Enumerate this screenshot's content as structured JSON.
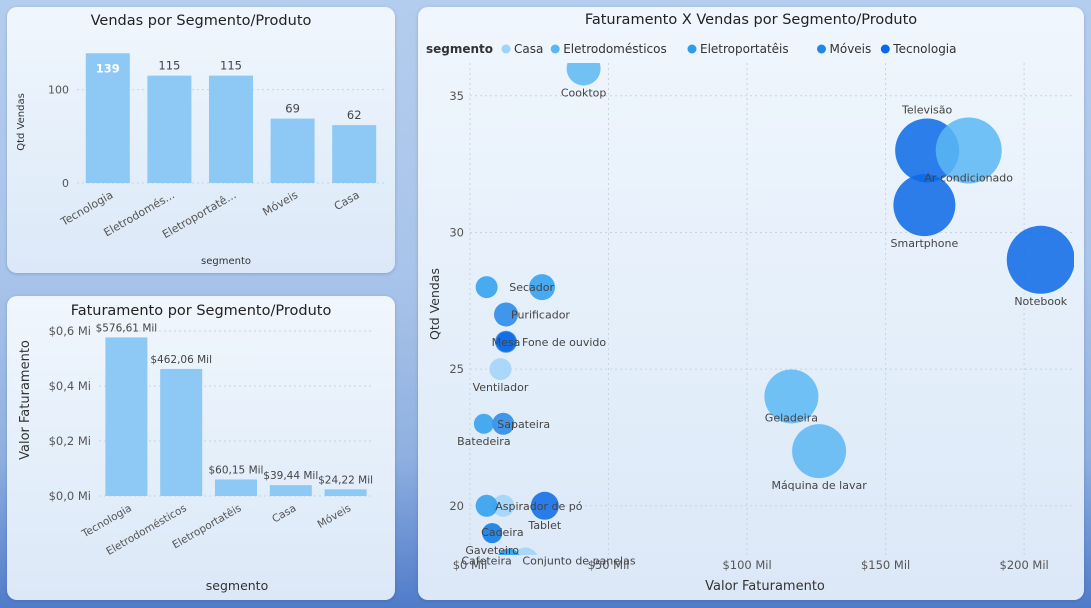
{
  "colors": {
    "bar": "#8ec8f5",
    "casa": "#9fd4f8",
    "eletrodomesticos": "#5bb7f3",
    "eletroportateis": "#2b9ded",
    "moveis": "#2386e8",
    "tecnologia": "#0b68e6"
  },
  "chart_data": [
    {
      "type": "bar",
      "title": "Vendas por Segmento/Produto",
      "xlabel": "segmento",
      "ylabel": "Qtd Vendas",
      "categories": [
        "Tecnologia",
        "Eletrodomés...",
        "Eletroportatê...",
        "Móveis",
        "Casa"
      ],
      "values": [
        139,
        115,
        115,
        69,
        62
      ],
      "data_labels": [
        "139",
        "115",
        "115",
        "69",
        "62"
      ],
      "yticks": [
        0,
        100
      ],
      "ytick_labels": [
        "0",
        "100"
      ],
      "ylim": [
        0,
        150
      ]
    },
    {
      "type": "bar",
      "title": "Faturamento por Segmento/Produto",
      "xlabel": "segmento",
      "ylabel": "Valor Faturamento",
      "categories": [
        "Tecnologia",
        "Eletrodomésticos",
        "Eletroportatêis",
        "Casa",
        "Móveis"
      ],
      "values": [
        576.61,
        462.06,
        60.15,
        39.44,
        24.22
      ],
      "data_labels": [
        "$576,61 Mil",
        "$462,06 Mil",
        "$60,15 Mil",
        "$39,44 Mil",
        "$24,22 Mil"
      ],
      "yticks": [
        0,
        200,
        400,
        600
      ],
      "ytick_labels": [
        "$0,0 Mi",
        "$0,2 Mi",
        "$0,4 Mi",
        "$0,6 Mi"
      ],
      "ylim": [
        0,
        640
      ]
    },
    {
      "type": "scatter",
      "title": "Faturamento X Vendas por Segmento/Produto",
      "xlabel": "Valor Faturamento",
      "ylabel": "Qtd Vendas",
      "legend_title": "segmento",
      "legend": [
        {
          "key": "casa",
          "label": "Casa"
        },
        {
          "key": "eletrodomesticos",
          "label": "Eletrodomésticos"
        },
        {
          "key": "eletroportateis",
          "label": "Eletroportatêis"
        },
        {
          "key": "moveis",
          "label": "Móveis"
        },
        {
          "key": "tecnologia",
          "label": "Tecnologia"
        }
      ],
      "xticks": [
        0,
        50,
        100,
        150,
        200
      ],
      "xtick_labels": [
        "$0 Mil",
        "$50 Mil",
        "$100 Mil",
        "$150 Mil",
        "$200 Mil"
      ],
      "yticks": [
        20,
        25,
        30,
        35
      ],
      "ytick_labels": [
        "20",
        "25",
        "30",
        "35"
      ],
      "xlim": [
        0,
        218
      ],
      "ylim": [
        18.2,
        36.2
      ],
      "points": [
        {
          "label": "Cooktop",
          "x": 41,
          "y": 36,
          "size": 17,
          "seg": "eletrodomesticos",
          "lp": "below"
        },
        {
          "label": "Televisão",
          "x": 165,
          "y": 33,
          "size": 32,
          "seg": "tecnologia",
          "lp": "above"
        },
        {
          "label": "Ar condicionado",
          "x": 180,
          "y": 33,
          "size": 33,
          "seg": "eletrodomesticos",
          "lp": "belowfar"
        },
        {
          "label": "Smartphone",
          "x": 164,
          "y": 31,
          "size": 31,
          "seg": "tecnologia",
          "lp": "below"
        },
        {
          "label": "Notebook",
          "x": 206,
          "y": 29,
          "size": 34,
          "seg": "tecnologia",
          "lp": "below"
        },
        {
          "label": "Secador",
          "x": 26,
          "y": 28,
          "size": 13,
          "seg": "eletroportateis",
          "lp": "left"
        },
        {
          "label": "",
          "x": 6,
          "y": 28,
          "size": 11,
          "seg": "eletroportateis",
          "lp": "none"
        },
        {
          "label": "Purificador",
          "x": 13,
          "y": 27,
          "size": 12,
          "seg": "moveis",
          "lp": "right"
        },
        {
          "label": "Mesa",
          "x": 13,
          "y": 26,
          "size": 11,
          "seg": "moveis",
          "lp": "center"
        },
        {
          "label": "Fone de ouvido",
          "x": 13,
          "y": 26,
          "size": 10,
          "seg": "tecnologia",
          "lp": "right"
        },
        {
          "label": "Ventilador",
          "x": 11,
          "y": 25,
          "size": 11,
          "seg": "casa",
          "lp": "below"
        },
        {
          "label": "Geladeira",
          "x": 116,
          "y": 24,
          "size": 27,
          "seg": "eletrodomesticos",
          "lp": "belowfar"
        },
        {
          "label": "Sapateira",
          "x": 12,
          "y": 23,
          "size": 11,
          "seg": "moveis",
          "lp": "right"
        },
        {
          "label": "Batedeira",
          "x": 5,
          "y": 23,
          "size": 10,
          "seg": "eletroportateis",
          "lp": "below"
        },
        {
          "label": "Máquina de lavar",
          "x": 126,
          "y": 22,
          "size": 27,
          "seg": "eletrodomesticos",
          "lp": "below"
        },
        {
          "label": "Aspirador de pó",
          "x": 12,
          "y": 20,
          "size": 11,
          "seg": "casa",
          "lp": "right"
        },
        {
          "label": "",
          "x": 6,
          "y": 20,
          "size": 11,
          "seg": "eletroportateis",
          "lp": "none"
        },
        {
          "label": "Tablet",
          "x": 27,
          "y": 20,
          "size": 14,
          "seg": "tecnologia",
          "lp": "below"
        },
        {
          "label": "Cadeira",
          "x": 8,
          "y": 19,
          "size": 10,
          "seg": "moveis",
          "lp": "right"
        },
        {
          "label": "Gaveteiro",
          "x": 8,
          "y": 19,
          "size": 10,
          "seg": "moveis",
          "lp": "below"
        },
        {
          "label": "Conjunto de panelas",
          "x": 20,
          "y": 18,
          "size": 13,
          "seg": "casa",
          "lp": "right"
        },
        {
          "label": "Cafeteira",
          "x": 14,
          "y": 18,
          "size": 11,
          "seg": "casa",
          "lp": "left"
        },
        {
          "label": "",
          "x": 14,
          "y": 18,
          "size": 12,
          "seg": "eletroportateis",
          "lp": "belowclip"
        }
      ]
    }
  ]
}
